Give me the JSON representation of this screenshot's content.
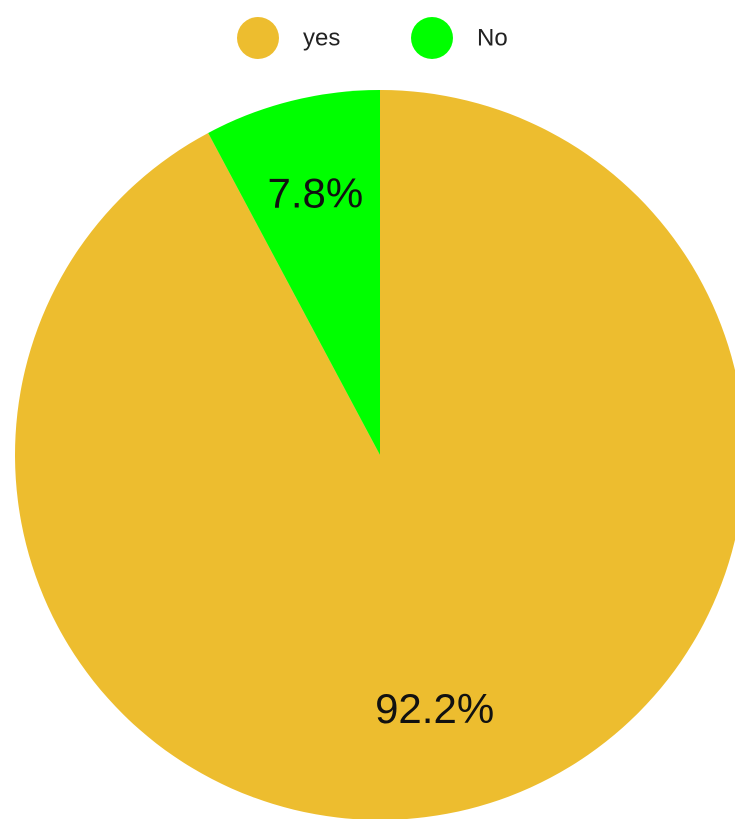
{
  "chart_data": {
    "type": "pie",
    "title": "",
    "slices": [
      {
        "label": "yes",
        "value": 92.2,
        "value_label": "92.2%",
        "color": "#EDBD2F"
      },
      {
        "label": "No",
        "value": 7.8,
        "value_label": "7.8%",
        "color": "#00FF00"
      }
    ],
    "legend_position": "top",
    "start_direction": "clockwise from 12 o'clock, smallest slice drawn counter-clockwise"
  }
}
